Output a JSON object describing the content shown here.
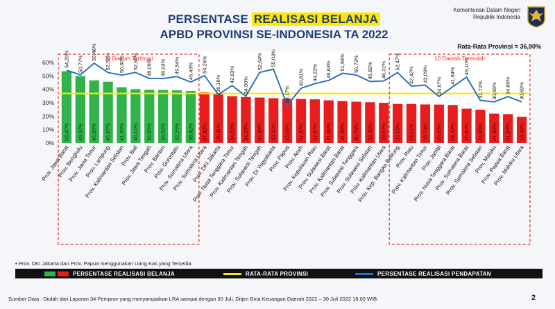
{
  "header": {
    "title_part1": "PERSENTASE",
    "title_highlight": "REALISASI BELANJA",
    "title_line2": "APBD PROVINSI SE-INDONESIA TA 2022",
    "ministry_line1": "Kementerian Dalam Negeri",
    "ministry_line2": "Republik Indonesia",
    "average_text": "Rata-Rata Provinsi = 36,90%"
  },
  "chart_data": {
    "type": "bar",
    "categories": [
      "Prov. Jawa Barat",
      "Prov. Bengkulu",
      "Prov. Jawa Timur",
      "Prov. Lampung",
      "Prov. Kalimantan Selatan",
      "Prov. Bali",
      "Prov. Jawa Tengah",
      "Prov. Banten",
      "Prov. Gorontalo",
      "Prov. Sumatera Utara",
      "Prov. Sumatera Utara",
      "Prov. DKI Jakarta",
      "Prov. Nusa Tenggara Timur",
      "Prov. Kalimantan Tengah",
      "Prov. Sulawesi Tengah",
      "Prov. Di Yogyakarta",
      "Prov. Papua",
      "Prov. Aceh",
      "Prov. Kepulauan Riau",
      "Prov. Sulawesi Barat",
      "Prov. Kalimantan Barat",
      "Prov. Sulawesi Tenggara",
      "Prov. Sulawesi Selatan",
      "Prov. Kalimantan Utara",
      "Prov. Kep. Bangka Belitung",
      "Prov. Riau",
      "Prov. Kalimantan Timur",
      "Prov. Jambi",
      "Prov. Nusa Tenggara Barat",
      "Prov. Sumatera Barat",
      "Prov. Sumatera Selatan",
      "Prov. Maluku",
      "Prov. Papua Barat",
      "Prov. Maluku Utara"
    ],
    "series": [
      {
        "name": "PERSENTASE REALISASI BELANJA",
        "kind": "bar",
        "values": [
          53.47,
          49.97,
          46.69,
          45.67,
          41.56,
          40.1,
          39.65,
          39.52,
          39.25,
          38.82,
          37.82,
          36.31,
          34.92,
          34.28,
          33.88,
          33.41,
          33.02,
          32.87,
          32.57,
          31.81,
          31.29,
          30.78,
          30.39,
          29.97,
          29.13,
          29.11,
          28.74,
          28.65,
          28.32,
          25.6,
          24.86,
          21.93,
          21.54,
          19.56
        ],
        "labels": [
          "53,47%",
          "49,97%",
          "46,69%",
          "45,67%",
          "41,56%",
          "40,10%",
          "39,65%",
          "39,52%",
          "39,25%",
          "38,82%",
          "37,82%",
          "36,31%",
          "34,92%",
          "34,28%",
          "33,88%",
          "33,41%",
          "33,02%",
          "32,87%",
          "32,57%",
          "31,81%",
          "31,29%",
          "30,78%",
          "30,39%",
          "29,97%",
          "29,13%",
          "29,11%",
          "28,74%",
          "28,65%",
          "28,32%",
          "25,60%",
          "24,86%",
          "21,93%",
          "21,54%",
          "19,56%"
        ]
      },
      {
        "name": "PERSENTASE REALISASI PENDAPATAN",
        "kind": "line",
        "values": [
          54.29,
          50.77,
          59.46,
          52.53,
          50.6,
          52.6,
          48.09,
          48.04,
          49.54,
          45.43,
          50.26,
          36.16,
          42.83,
          34.9,
          52.64,
          55.03,
          28.17,
          40.81,
          44.22,
          46.63,
          51.94,
          50.73,
          45.82,
          46.31,
          52.47,
          42.42,
          43.09,
          34.67,
          41.94,
          49.1,
          31.72,
          30.66,
          34.6,
          30.69
        ],
        "labels": [
          "54,29%",
          "50,77%",
          "59,46%",
          "52,53%",
          "50,60%",
          "52,60%",
          "48,09%",
          "48,04%",
          "49,54%",
          "45,43%",
          "50,26%",
          "36,16%",
          "42,83%",
          "34,90%",
          "52,64%",
          "55,03%",
          "28,17%",
          "40,81%",
          "44,22%",
          "46,63%",
          "51,94%",
          "50,73%",
          "45,82%",
          "46,31%",
          "52,47%",
          "42,42%",
          "43,09%",
          "34,67%",
          "41,94%",
          "49,10%",
          "31,72%",
          "30,66%",
          "34,60%",
          "30,69%"
        ]
      },
      {
        "name": "RATA-RATA PROVINSI",
        "kind": "reference",
        "value": 36.9
      }
    ],
    "colors": {
      "top": "#2fb34a",
      "other": "#e81e1e",
      "line": "#2d6fc2",
      "avg": "#f5ea00",
      "box": "#e8332e"
    },
    "groups": [
      {
        "label": "10 Daerah Tertinggi",
        "start": 0,
        "end": 9
      },
      {
        "label": "10 Daerah Terendah",
        "start": 24,
        "end": 33
      }
    ],
    "ylim": [
      0,
      60
    ],
    "yticks": [
      "0%",
      "10%",
      "20%",
      "30%",
      "40%",
      "50%",
      "60%"
    ],
    "grid": false
  },
  "footer": {
    "note": "•  Prov. DKI Jakarta dan Prov. Papua menggunakan Uang Kas yang Tersedia.",
    "legend_bar": "PERSENTASE REALISASI BELANJA",
    "legend_avg": "RATA-RATA PROVINSI",
    "legend_line": "PERSENTASE REALISASI PENDAPATAN",
    "source": "Sumber Data : Diolah dari Laporan 34 Pemprov yang menyampaikan LRA sampai dengan 30 Juli, Ditjen Bina Keuangan Daerah 2022 – 30 Juli 2022  18.00 WIB.",
    "page": "2"
  }
}
